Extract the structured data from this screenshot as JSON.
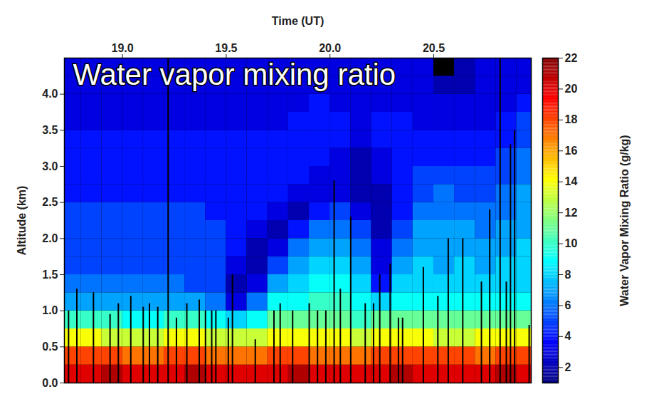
{
  "chart_data": {
    "type": "heatmap",
    "title": "Water vapor mixing ratio",
    "x_label": "Time (UT)",
    "y_label": "Altitude (km)",
    "xlim": [
      18.72,
      20.97
    ],
    "ylim": [
      0,
      4.5
    ],
    "xticks": [
      19,
      19.5,
      20,
      20.5
    ],
    "yticks": [
      0,
      0.5,
      1,
      1.5,
      2,
      2.5,
      3,
      3.5,
      4
    ],
    "x": [
      18.75,
      18.85,
      18.95,
      19.05,
      19.15,
      19.25,
      19.35,
      19.45,
      19.55,
      19.65,
      19.75,
      19.85,
      19.95,
      20.05,
      20.15,
      20.25,
      20.35,
      20.45,
      20.55,
      20.65,
      20.75,
      20.85,
      20.95
    ],
    "y": [
      0.125,
      0.375,
      0.625,
      0.875,
      1.125,
      1.375,
      1.625,
      1.875,
      2.125,
      2.375,
      2.625,
      2.875,
      3.125,
      3.375,
      3.625,
      3.875,
      4.125,
      4.375
    ],
    "values": [
      [
        20,
        20,
        21,
        20,
        20,
        20,
        21,
        20,
        20,
        20,
        20,
        21,
        20,
        20,
        20,
        20,
        21,
        20,
        20,
        20,
        20,
        21,
        20
      ],
      [
        18,
        18,
        18,
        17,
        17,
        18,
        18,
        17,
        17,
        17,
        18,
        18,
        17,
        17,
        17,
        18,
        18,
        18,
        18,
        18,
        17,
        18,
        18
      ],
      [
        14,
        14,
        13,
        13,
        13,
        14,
        14,
        13,
        13,
        13,
        14,
        14,
        14,
        14,
        13,
        14,
        14,
        14,
        13,
        13,
        14,
        14,
        14
      ],
      [
        10,
        10,
        10,
        9,
        9,
        10,
        10,
        9,
        8,
        9,
        11,
        11,
        11,
        11,
        10,
        11,
        11,
        11,
        11,
        11,
        11,
        11,
        11
      ],
      [
        7,
        7,
        7,
        7,
        7,
        7,
        7,
        6,
        3,
        6,
        9,
        9,
        10,
        10,
        9,
        8,
        9,
        9,
        9,
        9,
        9,
        9,
        9
      ],
      [
        6,
        6,
        6,
        6,
        6,
        6,
        5,
        5,
        2,
        3,
        7,
        8,
        9,
        9,
        8,
        4,
        8,
        8,
        8,
        8,
        8,
        8,
        8
      ],
      [
        5,
        5,
        5,
        5,
        5,
        5,
        5,
        5,
        3,
        2,
        5,
        7,
        8,
        8,
        7,
        3,
        7,
        8,
        7,
        8,
        7,
        8,
        8
      ],
      [
        5,
        5,
        5,
        5,
        5,
        5,
        5,
        5,
        4,
        2,
        3,
        6,
        7,
        7,
        6,
        3,
        6,
        7,
        7,
        7,
        7,
        7,
        8
      ],
      [
        5,
        5,
        5,
        5,
        5,
        5,
        5,
        5,
        4,
        3,
        2,
        4,
        6,
        6,
        5,
        2,
        5,
        7,
        7,
        7,
        6,
        7,
        7
      ],
      [
        5,
        5,
        5,
        5,
        5,
        5,
        5,
        4,
        4,
        4,
        3,
        2,
        4,
        5,
        3,
        2,
        4,
        6,
        6,
        6,
        6,
        6,
        7
      ],
      [
        4,
        4,
        4,
        4,
        4,
        4,
        4,
        4,
        4,
        4,
        4,
        3,
        3,
        3,
        2,
        2,
        4,
        5,
        6,
        5,
        5,
        6,
        7
      ],
      [
        4,
        4,
        4,
        4,
        4,
        4,
        4,
        4,
        4,
        4,
        4,
        4,
        3,
        3,
        2,
        3,
        4,
        5,
        5,
        5,
        5,
        5,
        6
      ],
      [
        4,
        4,
        4,
        4,
        4,
        4,
        4,
        4,
        4,
        4,
        4,
        4,
        4,
        3,
        2,
        3,
        4,
        4,
        4,
        4,
        4,
        5,
        6
      ],
      [
        4,
        4,
        4,
        4,
        4,
        4,
        4,
        4,
        4,
        4,
        4,
        4,
        4,
        4,
        3,
        4,
        4,
        4,
        4,
        4,
        4,
        4,
        5
      ],
      [
        3,
        3,
        3,
        3,
        3,
        3,
        3,
        3,
        3,
        3,
        3,
        4,
        4,
        4,
        3,
        4,
        4,
        3,
        3,
        3,
        3,
        4,
        5
      ],
      [
        3,
        3,
        3,
        3,
        3,
        3,
        3,
        3,
        3,
        3,
        3,
        3,
        4,
        3,
        3,
        3,
        3,
        3,
        3,
        3,
        3,
        3,
        4
      ],
      [
        3,
        3,
        3,
        3,
        3,
        3,
        3,
        3,
        3,
        3,
        3,
        3,
        3,
        3,
        3,
        3,
        3,
        3,
        2,
        2,
        3,
        3,
        3
      ],
      [
        3,
        3,
        3,
        3,
        3,
        3,
        3,
        3,
        3,
        3,
        3,
        3,
        3,
        3,
        3,
        3,
        3,
        3,
        null,
        2,
        3,
        3,
        3
      ]
    ],
    "color": "jet",
    "colorbar": {
      "label": "Water Vapor Mixing Ratio (g/kg)",
      "range": [
        1,
        22
      ],
      "ticks": [
        2,
        4,
        6,
        8,
        10,
        12,
        14,
        16,
        18,
        20,
        22
      ]
    },
    "masked_profiles": [
      {
        "time": 18.74,
        "top": 1.0
      },
      {
        "time": 18.78,
        "top": 1.3
      },
      {
        "time": 18.86,
        "top": 1.25
      },
      {
        "time": 18.94,
        "top": 0.95
      },
      {
        "time": 18.98,
        "top": 1.1
      },
      {
        "time": 19.04,
        "top": 1.2
      },
      {
        "time": 19.1,
        "top": 1.05
      },
      {
        "time": 19.13,
        "top": 1.1
      },
      {
        "time": 19.17,
        "top": 1.05
      },
      {
        "time": 19.22,
        "top": 4.5
      },
      {
        "time": 19.26,
        "top": 0.9
      },
      {
        "time": 19.31,
        "top": 1.1
      },
      {
        "time": 19.37,
        "top": 1.15
      },
      {
        "time": 19.4,
        "top": 1.0
      },
      {
        "time": 19.43,
        "top": 1.0
      },
      {
        "time": 19.45,
        "top": 1.0
      },
      {
        "time": 19.51,
        "top": 0.9
      },
      {
        "time": 19.53,
        "top": 1.5
      },
      {
        "time": 19.64,
        "top": 0.6
      },
      {
        "time": 19.73,
        "top": 1.0
      },
      {
        "time": 19.76,
        "top": 1.1
      },
      {
        "time": 19.82,
        "top": 1.0
      },
      {
        "time": 19.9,
        "top": 1.1
      },
      {
        "time": 19.94,
        "top": 1.0
      },
      {
        "time": 19.98,
        "top": 1.0
      },
      {
        "time": 20.02,
        "top": 2.8
      },
      {
        "time": 20.05,
        "top": 1.3
      },
      {
        "time": 20.1,
        "top": 2.3
      },
      {
        "time": 20.17,
        "top": 1.1
      },
      {
        "time": 20.21,
        "top": 1.1
      },
      {
        "time": 20.24,
        "top": 1.5
      },
      {
        "time": 20.29,
        "top": 1.65
      },
      {
        "time": 20.33,
        "top": 0.9
      },
      {
        "time": 20.35,
        "top": 0.9
      },
      {
        "time": 20.45,
        "top": 1.6
      },
      {
        "time": 20.52,
        "top": 1.2
      },
      {
        "time": 20.57,
        "top": 2.0
      },
      {
        "time": 20.64,
        "top": 2.0
      },
      {
        "time": 20.73,
        "top": 1.4
      },
      {
        "time": 20.77,
        "top": 2.4
      },
      {
        "time": 20.82,
        "top": 4.5
      },
      {
        "time": 20.85,
        "top": 1.4
      },
      {
        "time": 20.87,
        "top": 3.3
      },
      {
        "time": 20.89,
        "top": 3.5
      },
      {
        "time": 20.96,
        "top": 0.8
      }
    ]
  }
}
